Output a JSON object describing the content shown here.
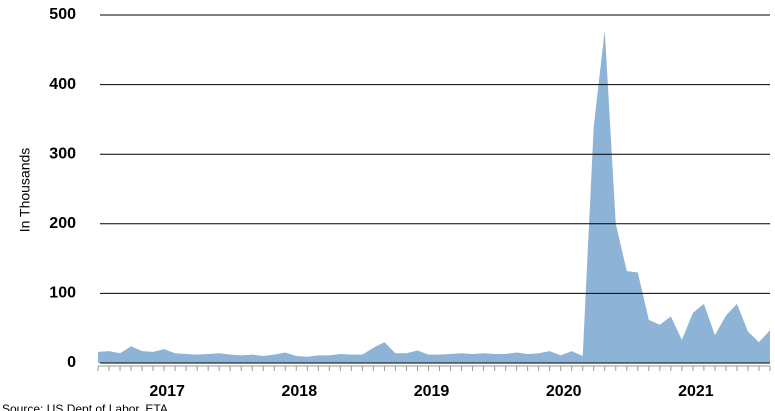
{
  "chart_data": {
    "type": "area",
    "y_label": "In Thousands",
    "source": "Source: US Dept of Labor, ETA",
    "categories": [
      null,
      null,
      null,
      null,
      null,
      null,
      null,
      "2017",
      null,
      null,
      null,
      null,
      null,
      null,
      null,
      null,
      null,
      null,
      null,
      "2018",
      null,
      null,
      null,
      null,
      null,
      null,
      null,
      null,
      null,
      null,
      null,
      "2019",
      null,
      null,
      null,
      null,
      null,
      null,
      null,
      null,
      null,
      null,
      null,
      "2020",
      null,
      null,
      null,
      null,
      null,
      null,
      null,
      null,
      null,
      null,
      null,
      "2021",
      null,
      null,
      null,
      null,
      null,
      null
    ],
    "values": [
      16,
      17,
      14,
      24,
      17,
      16,
      20,
      14,
      13,
      12,
      13,
      14,
      12,
      11,
      12,
      10,
      12,
      15,
      10,
      9,
      11,
      11,
      13,
      12,
      12,
      22,
      30,
      14,
      14,
      18,
      12,
      12,
      13,
      14,
      13,
      14,
      13,
      13,
      15,
      13,
      14,
      17,
      11,
      17,
      10,
      340,
      478,
      200,
      132,
      130,
      62,
      55,
      67,
      33,
      72,
      85,
      40,
      68,
      85,
      45,
      30,
      47
    ],
    "color": "#8db3d6",
    "ylim": [
      0,
      500
    ],
    "yticks": [
      0,
      100,
      200,
      300,
      400,
      500
    ],
    "grid": true
  }
}
